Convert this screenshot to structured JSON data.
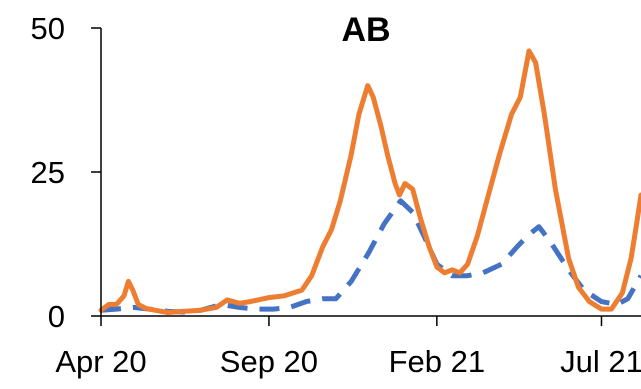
{
  "chart_data": {
    "type": "line",
    "title": "AB",
    "xlabel": "",
    "ylabel": "",
    "ylim": [
      0,
      50
    ],
    "yticks": [
      "0",
      "25",
      "50"
    ],
    "xticks": [
      {
        "date": "2020-04-01",
        "label": "Apr 20"
      },
      {
        "date": "2020-09-01",
        "label": "Sep 20"
      },
      {
        "date": "2021-02-01",
        "label": "Feb 21"
      },
      {
        "date": "2021-07-01",
        "label": "Jul 21"
      }
    ],
    "xlim": [
      "2020-04-01",
      "2021-08-06"
    ],
    "grid": false,
    "legend": "none",
    "series": [
      {
        "color": "#ED7D31",
        "dash": "solid",
        "points": [
          [
            "2020-04-01",
            1
          ],
          [
            "2020-04-08",
            2
          ],
          [
            "2020-04-15",
            2
          ],
          [
            "2020-04-22",
            3.5
          ],
          [
            "2020-04-26",
            6
          ],
          [
            "2020-04-30",
            4.5
          ],
          [
            "2020-05-05",
            2
          ],
          [
            "2020-05-12",
            1.3
          ],
          [
            "2020-05-20",
            1
          ],
          [
            "2020-06-01",
            0.6
          ],
          [
            "2020-06-15",
            0.8
          ],
          [
            "2020-07-01",
            1
          ],
          [
            "2020-07-15",
            1.5
          ],
          [
            "2020-07-25",
            2.8
          ],
          [
            "2020-08-05",
            2.2
          ],
          [
            "2020-08-15",
            2.5
          ],
          [
            "2020-09-01",
            3.2
          ],
          [
            "2020-09-15",
            3.5
          ],
          [
            "2020-10-01",
            4.5
          ],
          [
            "2020-10-10",
            7
          ],
          [
            "2020-10-20",
            12
          ],
          [
            "2020-10-28",
            15
          ],
          [
            "2020-11-05",
            20
          ],
          [
            "2020-11-15",
            28
          ],
          [
            "2020-11-22",
            35
          ],
          [
            "2020-11-30",
            40
          ],
          [
            "2020-12-05",
            38
          ],
          [
            "2020-12-12",
            33
          ],
          [
            "2020-12-18",
            28
          ],
          [
            "2020-12-25",
            23
          ],
          [
            "2020-12-29",
            21
          ],
          [
            "2021-01-03",
            23
          ],
          [
            "2021-01-10",
            22
          ],
          [
            "2021-01-17",
            17
          ],
          [
            "2021-01-25",
            12
          ],
          [
            "2021-02-01",
            8.5
          ],
          [
            "2021-02-08",
            7.5
          ],
          [
            "2021-02-15",
            8
          ],
          [
            "2021-02-22",
            7.5
          ],
          [
            "2021-03-01",
            9
          ],
          [
            "2021-03-10",
            14
          ],
          [
            "2021-03-20",
            21
          ],
          [
            "2021-03-30",
            28
          ],
          [
            "2021-04-10",
            35
          ],
          [
            "2021-04-18",
            38
          ],
          [
            "2021-04-26",
            46
          ],
          [
            "2021-05-02",
            44
          ],
          [
            "2021-05-10",
            35
          ],
          [
            "2021-05-20",
            22
          ],
          [
            "2021-06-01",
            10
          ],
          [
            "2021-06-10",
            5
          ],
          [
            "2021-06-20",
            2.5
          ],
          [
            "2021-07-01",
            1.2
          ],
          [
            "2021-07-10",
            1.2
          ],
          [
            "2021-07-20",
            4
          ],
          [
            "2021-07-28",
            10
          ],
          [
            "2021-08-02",
            16
          ],
          [
            "2021-08-06",
            21
          ]
        ]
      },
      {
        "color": "#4472C4",
        "dash": "dashed",
        "points": [
          [
            "2020-04-01",
            1
          ],
          [
            "2020-04-15",
            1.2
          ],
          [
            "2020-05-01",
            1.5
          ],
          [
            "2020-05-15",
            1.2
          ],
          [
            "2020-06-01",
            0.8
          ],
          [
            "2020-06-15",
            0.7
          ],
          [
            "2020-07-01",
            1
          ],
          [
            "2020-07-20",
            2
          ],
          [
            "2020-08-05",
            1.5
          ],
          [
            "2020-08-20",
            1.2
          ],
          [
            "2020-09-05",
            1.2
          ],
          [
            "2020-09-20",
            1.5
          ],
          [
            "2020-10-05",
            2.5
          ],
          [
            "2020-10-20",
            3
          ],
          [
            "2020-11-01",
            3
          ],
          [
            "2020-11-15",
            6
          ],
          [
            "2020-12-01",
            11
          ],
          [
            "2020-12-15",
            16
          ],
          [
            "2020-12-30",
            20
          ],
          [
            "2021-01-10",
            18
          ],
          [
            "2021-01-20",
            14
          ],
          [
            "2021-02-01",
            9
          ],
          [
            "2021-02-15",
            7
          ],
          [
            "2021-03-01",
            7
          ],
          [
            "2021-03-15",
            7.5
          ],
          [
            "2021-04-01",
            9
          ],
          [
            "2021-04-15",
            12
          ],
          [
            "2021-04-25",
            14
          ],
          [
            "2021-05-05",
            15.5
          ],
          [
            "2021-05-15",
            13
          ],
          [
            "2021-06-01",
            8
          ],
          [
            "2021-06-15",
            4.5
          ],
          [
            "2021-07-01",
            2.5
          ],
          [
            "2021-07-15",
            2
          ],
          [
            "2021-07-25",
            3
          ],
          [
            "2021-08-06",
            7
          ]
        ]
      }
    ]
  }
}
